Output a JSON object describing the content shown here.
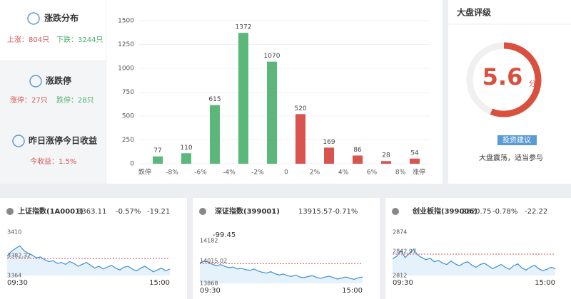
{
  "sidebar": {
    "distribution": {
      "title": "涨跌分布",
      "up": "上涨：804只",
      "down": "下跌：3244只"
    },
    "limit": {
      "title": "涨跌停",
      "up": "涨停：27只",
      "down": "跌停：28只"
    },
    "yesterday": {
      "title": "昨日涨停今日收益",
      "label": "今收益：1.5%"
    }
  },
  "rating": {
    "title": "大盘评级",
    "score": 5.6,
    "unit": "分",
    "scale": [
      0,
      10
    ],
    "color": "#d9503e",
    "button": "投资建议",
    "advice": "大盘震荡，适当参与"
  },
  "chart_data": [
    {
      "type": "bar",
      "x_labels": [
        "跌停",
        "-8%",
        "-6%",
        "-4%",
        "-2%",
        "0",
        "2%",
        "4%",
        "6%",
        "8%",
        "涨停"
      ],
      "values": [
        77,
        110,
        615,
        1372,
        1070,
        520,
        169,
        86,
        28,
        54
      ],
      "colors": [
        "#5bb87a",
        "#5bb87a",
        "#5bb87a",
        "#5bb87a",
        "#5bb87a",
        "#d9534f",
        "#d9534f",
        "#d9534f",
        "#d9534f",
        "#d9534f"
      ],
      "ylim": [
        0,
        1500
      ],
      "yticks": [
        0,
        250,
        500,
        750,
        1000,
        1250,
        1500
      ],
      "grid": true
    },
    {
      "type": "line",
      "title": "上证指数(1A0001)",
      "price": 3363.11,
      "pct": "-0.57%",
      "change": -19.21,
      "color": "#3a8fd6",
      "values": [
        3385,
        3390,
        3393,
        3396,
        3391,
        3388,
        3386,
        3383,
        3384,
        3381,
        3379,
        3380,
        3377,
        3378,
        3376,
        3379,
        3377,
        3374,
        3376,
        3378,
        3375,
        3372,
        3374,
        3371,
        3373,
        3375,
        3372,
        3370,
        3373,
        3374,
        3371,
        3369,
        3372,
        3374,
        3371,
        3368,
        3370,
        3372,
        3369,
        3371
      ],
      "ylim": [
        3364,
        3410
      ],
      "yticks": [
        3364,
        3410
      ],
      "ref": 3382.32,
      "x_labels": [
        "09:30",
        "15:00"
      ]
    },
    {
      "type": "line",
      "title": "深证指数(399001)",
      "price": 13915.57,
      "pct": "-0.71%",
      "change": -99.45,
      "color": "#3a8fd6",
      "values": [
        14020,
        14035,
        14028,
        14010,
        14000,
        14008,
        13995,
        13985,
        13990,
        13975,
        13980,
        13970,
        13965,
        13975,
        13960,
        13950,
        13945,
        13955,
        13940,
        13930,
        13938,
        13925,
        13920,
        13930,
        13915,
        13910,
        13920,
        13925,
        13912,
        13905,
        13915,
        13922,
        13910,
        13900,
        13908,
        13915,
        13905,
        13898,
        13910,
        13915
      ],
      "ylim": [
        13868,
        14182
      ],
      "yticks": [
        13868,
        14182
      ],
      "ref": 14015.02,
      "x_labels": [
        "09:30",
        "15:00"
      ]
    },
    {
      "type": "line",
      "title": "创业板指(399006)",
      "price": 2820.75,
      "pct": "-0.78%",
      "change": -22.22,
      "color": "#3a8fd6",
      "values": [
        2836,
        2840,
        2848,
        2838,
        2844,
        2850,
        2842,
        2838,
        2835,
        2837,
        2832,
        2834,
        2830,
        2828,
        2833,
        2829,
        2826,
        2830,
        2832,
        2827,
        2824,
        2828,
        2830,
        2826,
        2822,
        2825,
        2828,
        2824,
        2821,
        2826,
        2829,
        2823,
        2820,
        2824,
        2827,
        2822,
        2819,
        2821,
        2824,
        2822
      ],
      "ylim": [
        2812,
        2874
      ],
      "yticks": [
        2812,
        2874
      ],
      "ref": 2842.97,
      "x_labels": [
        "09:30",
        "15:00"
      ]
    }
  ]
}
